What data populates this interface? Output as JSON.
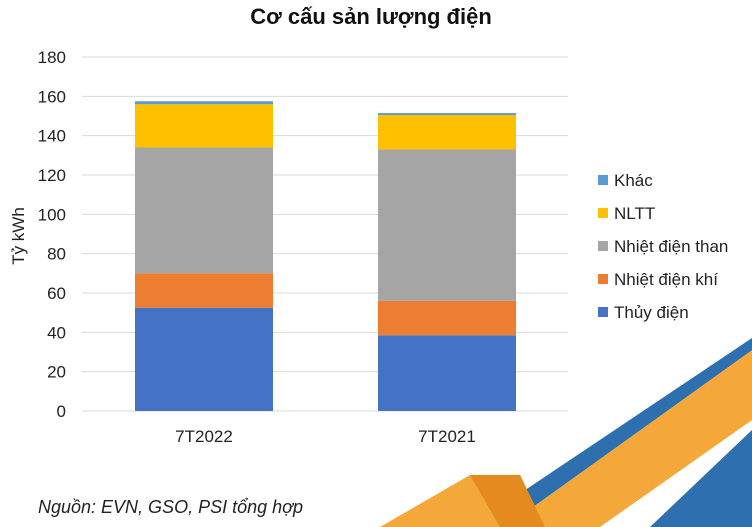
{
  "colors": {
    "thuy_dien": "#4472C4",
    "nhiet_dien_khi": "#ED7D31",
    "nhiet_dien_than": "#A5A5A5",
    "nltt": "#FFC000",
    "khac": "#5B9BD5",
    "deco_orange": "#F4A83A",
    "deco_blue": "#2E6FB0"
  },
  "chart_data": {
    "type": "bar",
    "stacked": true,
    "title": "Cơ cấu sản lượng điện",
    "ylabel": "Tỷ kWh",
    "xlabel": "",
    "ylim": [
      0,
      180
    ],
    "yticks": [
      "0",
      "20",
      "40",
      "60",
      "80",
      "100",
      "120",
      "140",
      "160",
      "180"
    ],
    "grid": true,
    "legend_position": "right",
    "categories": [
      "7T2022",
      "7T2021"
    ],
    "series": [
      {
        "name": "Thủy điện",
        "values": [
          52.5,
          38.5
        ]
      },
      {
        "name": "Nhiệt điện khí",
        "values": [
          17.5,
          17.5
        ]
      },
      {
        "name": "Nhiệt điện than",
        "values": [
          64,
          77
        ]
      },
      {
        "name": "NLTT",
        "values": [
          22,
          17.5
        ]
      },
      {
        "name": "Khác",
        "values": [
          1.5,
          1
        ]
      }
    ]
  },
  "source_note": "Nguồn: EVN, GSO, PSI tổng hợp"
}
